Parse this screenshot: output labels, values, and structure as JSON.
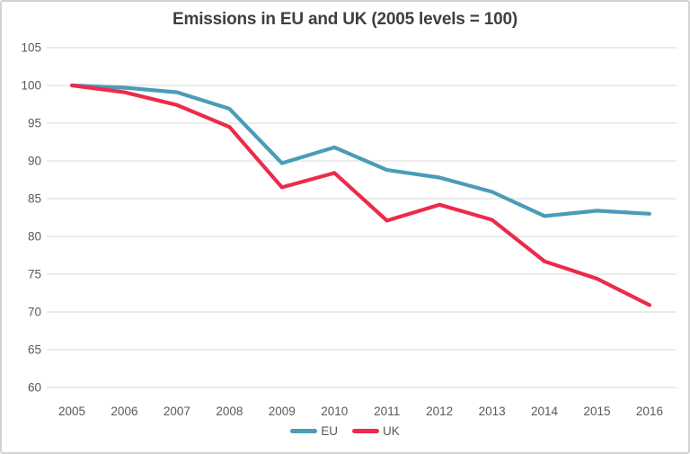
{
  "chart_data": {
    "type": "line",
    "title": "Emissions in EU and UK (2005 levels = 100)",
    "categories": [
      "2005",
      "2006",
      "2007",
      "2008",
      "2009",
      "2010",
      "2011",
      "2012",
      "2013",
      "2014",
      "2015",
      "2016"
    ],
    "series": [
      {
        "name": "EU",
        "color": "#4A9CB8",
        "values": [
          100,
          99.7,
          99.1,
          96.9,
          89.7,
          91.8,
          88.8,
          87.8,
          85.9,
          82.7,
          83.4,
          83
        ]
      },
      {
        "name": "UK",
        "color": "#EC2B4B",
        "values": [
          100,
          99.1,
          97.4,
          94.5,
          86.5,
          88.4,
          82.1,
          84.2,
          82.2,
          76.7,
          74.4,
          70.9
        ]
      }
    ],
    "ylim": [
      60,
      105
    ],
    "yticks": [
      105,
      100,
      95,
      90,
      85,
      80,
      75,
      70,
      65,
      60
    ],
    "xlabel": "",
    "ylabel": "",
    "grid": "horizontal",
    "legend_position": "bottom",
    "colors": {
      "grid": "#D9D9D9",
      "tick_label": "#595959",
      "title": "#3F3F3F",
      "panel_border": "#D3D3D3",
      "background": "#FFFFFF"
    }
  }
}
